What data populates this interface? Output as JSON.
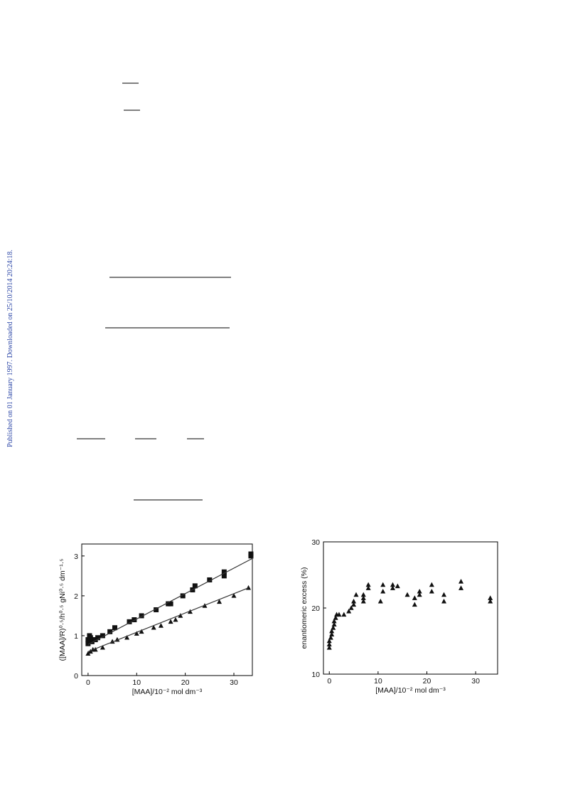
{
  "side_note": "Published on 01 January 1997. Downloaded on 25/10/2014 20:24:18.",
  "chart_data": [
    {
      "type": "scatter",
      "xlabel": "[MAA]/10⁻² mol dm⁻³",
      "ylabel": "([MAA]/R)⁰·⁵/h⁰·⁵ gNi⁰·⁵ dm⁻¹·⁵",
      "xlim": [
        -1.3,
        33.8
      ],
      "xticks": [
        0,
        10,
        20,
        30
      ],
      "ylim": [
        0,
        3.3
      ],
      "yticks": [
        0,
        1,
        2,
        3
      ],
      "series": [
        {
          "marker": "square",
          "color": "#111111",
          "x": [
            0,
            0,
            0.3,
            0.5,
            0.8,
            1,
            1.5,
            2,
            3,
            4.5,
            5.5,
            8.5,
            9.5,
            11,
            14,
            16.5,
            17,
            19.5,
            21.5,
            22,
            25,
            28,
            28,
            33.5,
            33.5
          ],
          "values": [
            0.8,
            0.9,
            1.0,
            0.95,
            0.85,
            0.9,
            0.9,
            0.95,
            1.0,
            1.1,
            1.2,
            1.35,
            1.4,
            1.5,
            1.65,
            1.8,
            1.8,
            2.0,
            2.15,
            2.25,
            2.4,
            2.5,
            2.6,
            3.0,
            3.05
          ]
        },
        {
          "marker": "triangle",
          "color": "#111111",
          "x": [
            0,
            0.5,
            1,
            1.5,
            3,
            5,
            6,
            8,
            10,
            11,
            13.5,
            15,
            17,
            18,
            19,
            21,
            24,
            27,
            30,
            33
          ],
          "values": [
            0.55,
            0.6,
            0.65,
            0.65,
            0.7,
            0.85,
            0.9,
            0.95,
            1.05,
            1.1,
            1.2,
            1.25,
            1.35,
            1.4,
            1.5,
            1.6,
            1.75,
            1.85,
            2.0,
            2.2
          ]
        },
        {
          "marker": "line",
          "color": "#333333",
          "x": [
            0,
            34
          ],
          "values": [
            0.78,
            2.95
          ]
        },
        {
          "marker": "line",
          "color": "#333333",
          "x": [
            0,
            33
          ],
          "values": [
            0.6,
            2.2
          ]
        }
      ]
    },
    {
      "type": "scatter",
      "xlabel": "[MAA]/10⁻² mol dm⁻³",
      "ylabel": "enantiomeric excess (%)",
      "xlim": [
        -1.2,
        34.5
      ],
      "xticks": [
        0,
        10,
        20,
        30
      ],
      "ylim": [
        10,
        30
      ],
      "yticks": [
        10,
        20,
        30
      ],
      "series": [
        {
          "marker": "triangle",
          "color": "#111111",
          "x": [
            0,
            0,
            0,
            0.3,
            0.5,
            0.5,
            0.8,
            1,
            1,
            1.3,
            1.5,
            2,
            3,
            4,
            4.5,
            5,
            5,
            5.5,
            7,
            7,
            7,
            8,
            8,
            10.5,
            11,
            11,
            13,
            13,
            14,
            16,
            17.5,
            17.5,
            18.5,
            18.5,
            21,
            21,
            23.5,
            23.5,
            27,
            27,
            33,
            33
          ],
          "values": [
            14,
            14.5,
            15,
            15.5,
            16,
            16.5,
            17,
            17.5,
            18,
            18.5,
            19,
            19,
            19,
            19.5,
            20,
            20.5,
            21,
            22,
            21,
            21.5,
            22,
            23,
            23.5,
            21,
            22.5,
            23.5,
            23,
            23.5,
            23.3,
            22,
            20.5,
            21.5,
            22,
            22.5,
            22.5,
            23.5,
            21,
            22,
            23,
            24,
            21,
            21.5
          ]
        }
      ]
    }
  ]
}
